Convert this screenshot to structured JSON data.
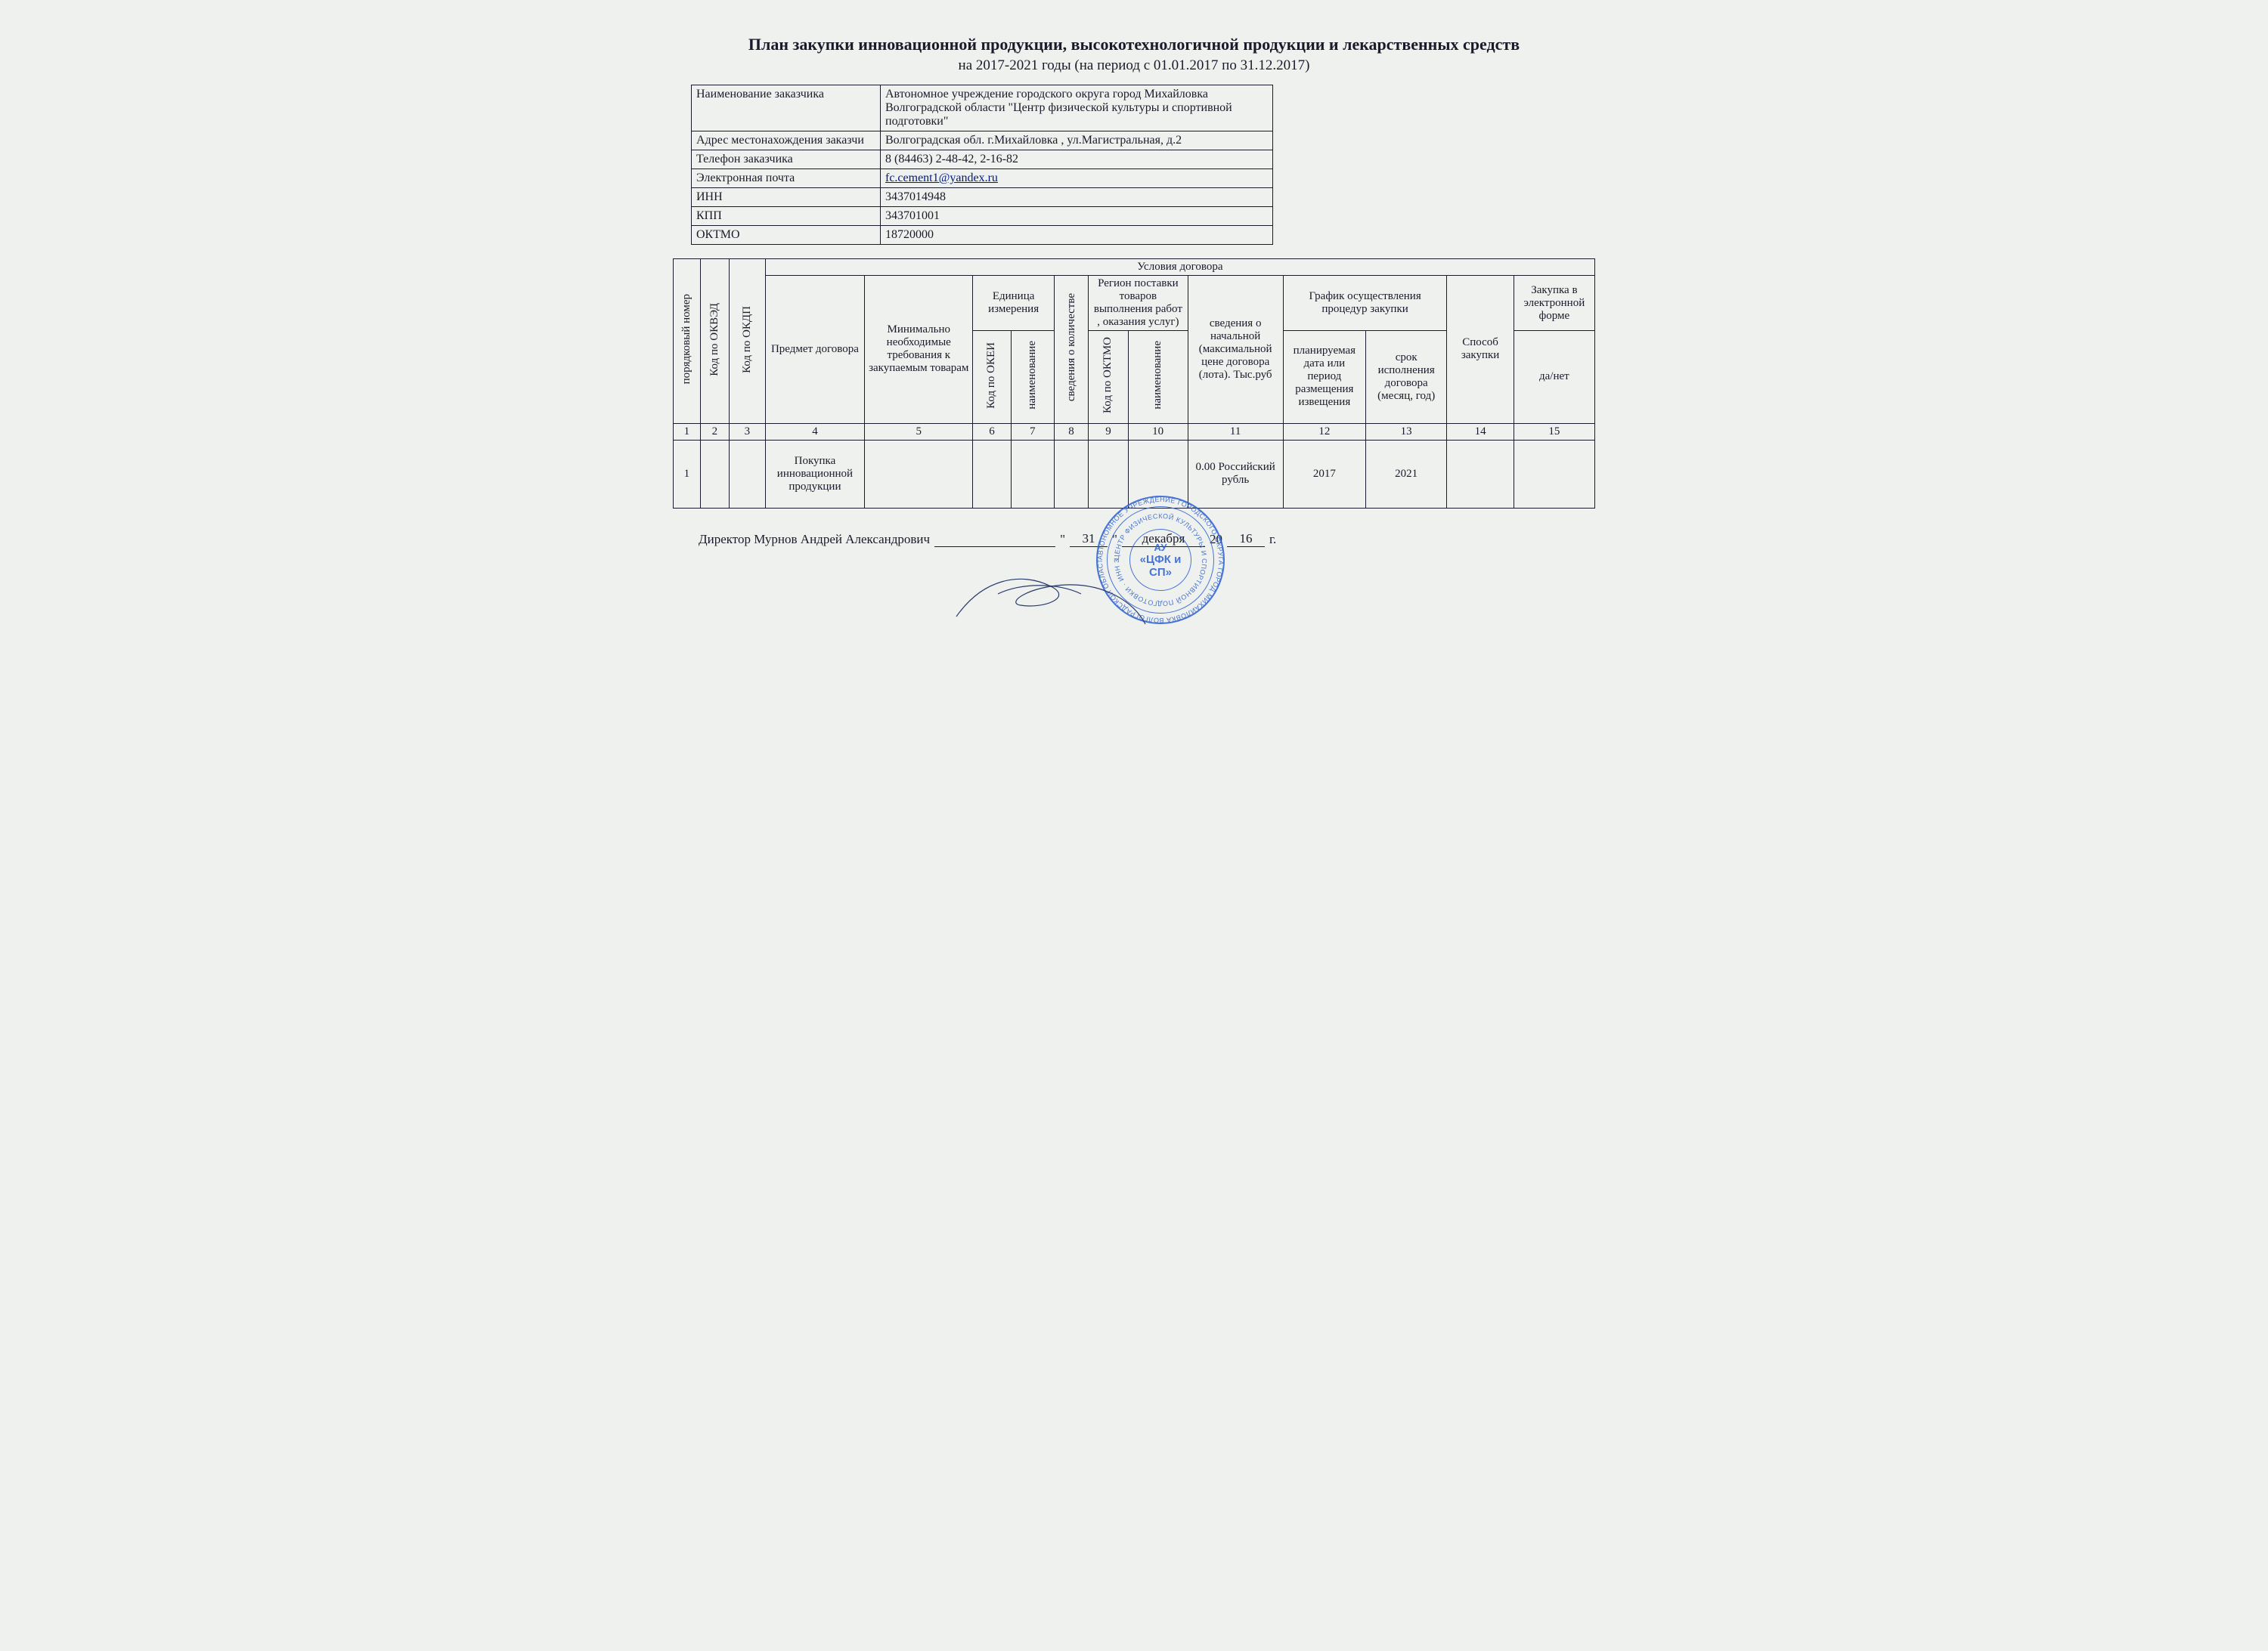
{
  "title": "План закупки инновационной продукции, высокотехнологичной продукции и лекарственных средств",
  "subtitle": "на 2017-2021 годы (на период с 01.01.2017 по 31.12.2017)",
  "info": [
    {
      "label": "Наименование заказчика",
      "value": "Автономное учреждение городского округа город Михайловка Волгоградской области \"Центр физической культуры и спортивной подготовки\""
    },
    {
      "label": "Адрес местонахождения заказчи",
      "value": "Волгоградская обл. г.Михайловка , ул.Магистральная, д.2"
    },
    {
      "label": "Телефон заказчика",
      "value": "8 (84463) 2-48-42, 2-16-82"
    },
    {
      "label": "Электронная почта",
      "value": "fc.cement1@yandex.ru",
      "is_link": true
    },
    {
      "label": "ИНН",
      "value": "3437014948"
    },
    {
      "label": "КПП",
      "value": "343701001"
    },
    {
      "label": "ОКТМО",
      "value": "18720000"
    }
  ],
  "headers": {
    "conditions": "Условия договора",
    "seq": "порядковый номер",
    "okved": "Код по ОКВЭД",
    "okdp": "Код по ОКДП",
    "subject": "Предмет договора",
    "minreq": "Минимально необходимые требования к закупаемым товарам",
    "unit": "Единица измерения",
    "okei": "Код по ОКЕИ",
    "unitname": "наименование",
    "qty": "сведения о количестве",
    "region": "Регион поставки товаров выполнения работ , оказания услуг)",
    "oktmo": "Код по ОКТМО",
    "regionname": "наименование",
    "price": "сведения о начальной (максимальной цене договора (лота). Тыс.руб",
    "schedule": "График осуществления процедур закупки",
    "plandate": "планируемая дата или период размещения извещения",
    "deadline": "срок исполнения договора (месяц, год)",
    "method": "Способ закупки",
    "eform": "Закупка в электронной форме",
    "yesno": "да/нет"
  },
  "colnums": [
    "1",
    "2",
    "3",
    "4",
    "5",
    "6",
    "7",
    "8",
    "9",
    "10",
    "11",
    "12",
    "13",
    "14",
    "15"
  ],
  "row": {
    "n": "1",
    "okved": "",
    "okdp": "",
    "subject": "Покупка инновационной продукции",
    "minreq": "",
    "okei": "",
    "unitname": "",
    "qty": "",
    "oktmo": "",
    "regionname": "",
    "price": "0.00 Российский рубль",
    "plandate": "2017",
    "deadline": "2021",
    "method": "",
    "yesno": ""
  },
  "signature": {
    "role": "Директор Мурнов Андрей Александрович",
    "day_q1": "\"",
    "day": "31",
    "day_q2": "\"",
    "month": "декабря",
    "year_prefix": "20",
    "year_suffix": "16",
    "year_tail": "г."
  },
  "stamp": {
    "outer_text": "АВТОНОМНОЕ УЧРЕЖДЕНИЕ ГОРОДСКОГО ОКРУГА ГОРОД МИХАЙЛОВКА ВОЛГОГРАДСКОЙ ОБЛАСТИ",
    "inner_text": "ЦЕНТР ФИЗИЧЕСКОЙ КУЛЬТУРЫ И СПОРТИВНОЙ ПОДГОТОВКИ · ИНН 3437014948 · ОГРН 1123456000000",
    "au": "АУ",
    "org": "«ЦФК и СП»"
  },
  "colors": {
    "text": "#1a1a2a",
    "background": "#eef1ee",
    "stamp": "#2a5fcf",
    "link": "#001a80"
  }
}
